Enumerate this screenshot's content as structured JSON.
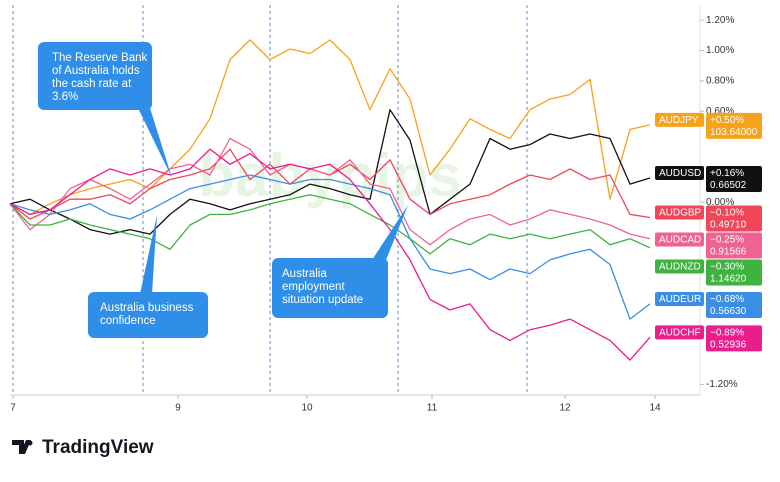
{
  "chart_data": {
    "type": "line",
    "watermark": "babypips",
    "x": [
      0,
      1,
      2,
      3,
      4,
      5,
      6,
      7,
      8,
      9,
      10,
      11,
      12,
      13,
      14,
      15,
      16,
      17,
      18,
      19,
      20,
      21,
      22,
      23,
      24,
      25,
      26,
      27,
      28,
      29,
      30,
      31,
      32
    ],
    "xlim": [
      0,
      34.5
    ],
    "xticks": [
      {
        "value": 0.15,
        "label": "7"
      },
      {
        "value": 8.4,
        "label": "9"
      },
      {
        "value": 14.85,
        "label": "10"
      },
      {
        "value": 21.1,
        "label": "11"
      },
      {
        "value": 27.75,
        "label": "12"
      },
      {
        "value": 32.25,
        "label": "14"
      }
    ],
    "ylim": [
      -1.27,
      1.3
    ],
    "yticks": [
      {
        "value": 1.2,
        "label": "1.20%"
      },
      {
        "value": 1.0,
        "label": "1.00%"
      },
      {
        "value": 0.8,
        "label": "0.80%"
      },
      {
        "value": 0.6,
        "label": "0.60%"
      },
      {
        "value": 0.0,
        "label": "0.00%"
      },
      {
        "value": -1.2,
        "label": "-1.20%"
      }
    ],
    "series": [
      {
        "name": "AUDJPY",
        "color": "#f7a21b",
        "change_label": "+0.50%",
        "price": "103.64000",
        "values": [
          -0.01,
          -0.08,
          -0.01,
          0.05,
          0.09,
          0.12,
          0.15,
          0.09,
          0.22,
          0.35,
          0.55,
          0.94,
          1.07,
          0.94,
          1.01,
          0.98,
          1.07,
          0.94,
          0.61,
          0.88,
          0.68,
          0.18,
          0.35,
          0.55,
          0.48,
          0.42,
          0.61,
          0.68,
          0.71,
          0.81,
          0.02,
          0.48,
          0.51
        ]
      },
      {
        "name": "AUDUSD",
        "color": "#111111",
        "change_label": "+0.16%",
        "price": "0.66502",
        "values": [
          -0.01,
          0.02,
          -0.05,
          -0.11,
          -0.18,
          -0.21,
          -0.18,
          -0.21,
          -0.08,
          0.02,
          -0.01,
          -0.05,
          -0.01,
          0.02,
          0.05,
          0.12,
          0.09,
          0.05,
          0.02,
          0.61,
          0.41,
          -0.08,
          0.02,
          0.12,
          0.42,
          0.35,
          0.38,
          0.45,
          0.42,
          0.45,
          0.42,
          0.12,
          0.16
        ]
      },
      {
        "name": "AUDGBP",
        "color": "#f0465a",
        "change_label": "−0.10%",
        "price": "0.49710",
        "values": [
          -0.01,
          -0.11,
          -0.05,
          0.02,
          0.02,
          0.05,
          -0.01,
          0.09,
          0.15,
          0.18,
          0.22,
          0.35,
          0.15,
          0.25,
          0.12,
          0.22,
          0.18,
          0.25,
          0.15,
          0.28,
          0.02,
          -0.08,
          -0.01,
          0.02,
          0.05,
          0.12,
          0.18,
          0.15,
          0.22,
          0.15,
          0.18,
          -0.08,
          -0.1
        ]
      },
      {
        "name": "AUDCAD",
        "color": "#f06292",
        "change_label": "−0.25%",
        "price": "0.91566",
        "values": [
          -0.01,
          -0.18,
          -0.08,
          0.09,
          0.15,
          0.09,
          0.02,
          0.12,
          0.22,
          0.25,
          0.18,
          0.42,
          0.35,
          0.18,
          0.25,
          0.22,
          0.18,
          0.28,
          0.12,
          0.09,
          -0.18,
          -0.28,
          -0.18,
          -0.11,
          -0.08,
          -0.15,
          -0.11,
          -0.05,
          -0.08,
          -0.11,
          -0.15,
          -0.21,
          -0.24
        ]
      },
      {
        "name": "AUDNZD",
        "color": "#3fb33f",
        "change_label": "−0.30%",
        "price": "1.14620",
        "values": [
          -0.01,
          -0.15,
          -0.15,
          -0.11,
          -0.15,
          -0.18,
          -0.21,
          -0.24,
          -0.31,
          -0.15,
          -0.08,
          -0.08,
          -0.05,
          -0.01,
          0.02,
          0.05,
          0.02,
          -0.01,
          -0.08,
          -0.15,
          -0.24,
          -0.34,
          -0.24,
          -0.28,
          -0.21,
          -0.24,
          -0.21,
          -0.24,
          -0.21,
          -0.18,
          -0.28,
          -0.24,
          -0.3
        ]
      },
      {
        "name": "AUDEUR",
        "color": "#3a8ee6",
        "change_label": "−0.68%",
        "price": "0.56630",
        "values": [
          -0.01,
          -0.05,
          -0.08,
          -0.05,
          -0.01,
          -0.08,
          -0.11,
          -0.05,
          0.02,
          0.09,
          0.12,
          0.15,
          0.18,
          0.15,
          0.12,
          0.15,
          0.15,
          0.12,
          0.09,
          0.05,
          -0.24,
          -0.44,
          -0.47,
          -0.44,
          -0.51,
          -0.44,
          -0.47,
          -0.38,
          -0.34,
          -0.31,
          -0.41,
          -0.77,
          -0.67
        ]
      },
      {
        "name": "AUDCHF",
        "color": "#e91e8c",
        "change_label": "−0.89%",
        "price": "0.52936",
        "values": [
          -0.01,
          -0.08,
          -0.05,
          0.05,
          0.15,
          0.22,
          0.18,
          0.22,
          0.18,
          0.22,
          0.35,
          0.25,
          0.32,
          0.22,
          0.25,
          0.22,
          0.25,
          0.15,
          -0.01,
          -0.18,
          -0.38,
          -0.64,
          -0.71,
          -0.67,
          -0.84,
          -0.91,
          -0.84,
          -0.81,
          -0.77,
          -0.84,
          -0.91,
          -1.04,
          -0.89
        ]
      }
    ],
    "annotations": [
      {
        "lines": [
          "The Reserve Bank",
          "of Australia holds",
          "the cash rate at",
          "3.6%"
        ]
      },
      {
        "lines": [
          "Australia business",
          "confidence"
        ]
      },
      {
        "lines": [
          "Australia",
          "employment",
          "situation update"
        ]
      }
    ]
  },
  "footer": {
    "brand": "TradingView"
  }
}
